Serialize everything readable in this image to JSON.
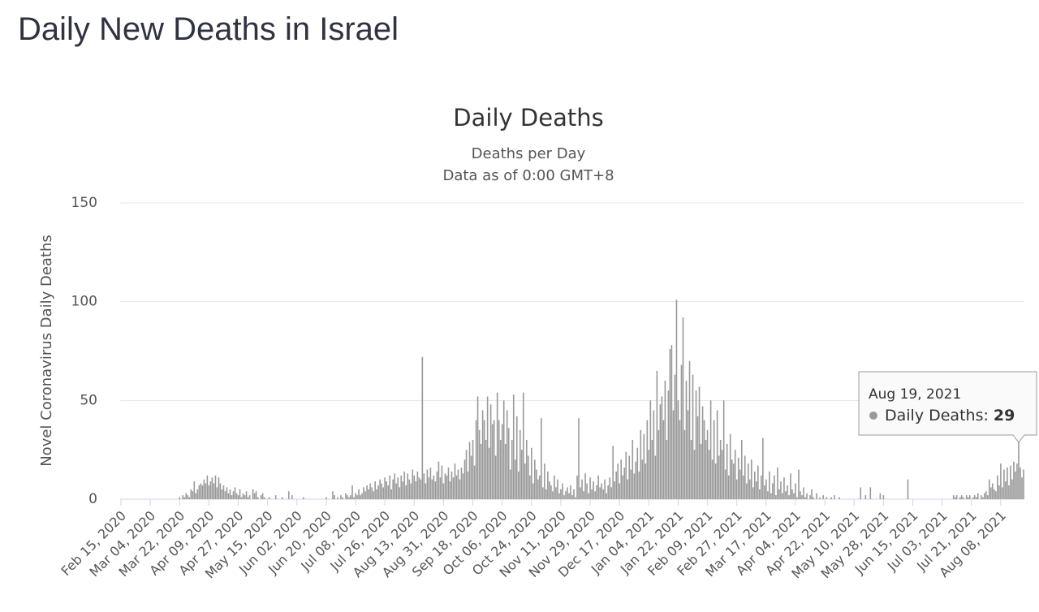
{
  "page_title": "Daily New Deaths in Israel",
  "chart_data": {
    "type": "bar",
    "title": "Daily Deaths",
    "subtitle": [
      "Deaths per Day",
      "Data as of 0:00 GMT+8"
    ],
    "y_label": "Novel Coronavirus Daily Deaths",
    "ylim": [
      0,
      150
    ],
    "yticks": [
      0,
      50,
      100,
      150
    ],
    "grid": true,
    "categories": [
      "Feb 15, 2020",
      null,
      null,
      null,
      null,
      null,
      null,
      null,
      null,
      null,
      null,
      null,
      null,
      null,
      null,
      null,
      null,
      null,
      "Mar 04, 2020",
      null,
      null,
      null,
      null,
      null,
      null,
      null,
      null,
      null,
      null,
      null,
      null,
      null,
      null,
      null,
      null,
      null,
      "Mar 22, 2020",
      null,
      null,
      null,
      null,
      null,
      null,
      null,
      null,
      null,
      null,
      null,
      null,
      null,
      null,
      null,
      null,
      null,
      "Apr 09, 2020",
      null,
      null,
      null,
      null,
      null,
      null,
      null,
      null,
      null,
      null,
      null,
      null,
      null,
      null,
      null,
      null,
      null,
      "Apr 27, 2020",
      null,
      null,
      null,
      null,
      null,
      null,
      null,
      null,
      null,
      null,
      null,
      null,
      null,
      null,
      null,
      null,
      null,
      "May 15, 2020",
      null,
      null,
      null,
      null,
      null,
      null,
      null,
      null,
      null,
      null,
      null,
      null,
      null,
      null,
      null,
      null,
      null,
      "Jun 02, 2020",
      null,
      null,
      null,
      null,
      null,
      null,
      null,
      null,
      null,
      null,
      null,
      null,
      null,
      null,
      null,
      null,
      null,
      "Jun 20, 2020",
      null,
      null,
      null,
      null,
      null,
      null,
      null,
      null,
      null,
      null,
      null,
      null,
      null,
      null,
      null,
      null,
      null,
      "Jul 08, 2020",
      null,
      null,
      null,
      null,
      null,
      null,
      null,
      null,
      null,
      null,
      null,
      null,
      null,
      null,
      null,
      null,
      null,
      "Jul 26, 2020",
      null,
      null,
      null,
      null,
      null,
      null,
      null,
      null,
      null,
      null,
      null,
      null,
      null,
      null,
      null,
      null,
      null,
      "Aug 13, 2020",
      null,
      null,
      null,
      null,
      null,
      null,
      null,
      null,
      null,
      null,
      null,
      null,
      null,
      null,
      null,
      null,
      null,
      "Aug 31, 2020",
      null,
      null,
      null,
      null,
      null,
      null,
      null,
      null,
      null,
      null,
      null,
      null,
      null,
      null,
      null,
      null,
      null,
      "Sep 18, 2020",
      null,
      null,
      null,
      null,
      null,
      null,
      null,
      null,
      null,
      null,
      null,
      null,
      null,
      null,
      null,
      null,
      null,
      "Oct 06, 2020",
      null,
      null,
      null,
      null,
      null,
      null,
      null,
      null,
      null,
      null,
      null,
      null,
      null,
      null,
      null,
      null,
      null,
      "Oct 24, 2020",
      null,
      null,
      null,
      null,
      null,
      null,
      null,
      null,
      null,
      null,
      null,
      null,
      null,
      null,
      null,
      null,
      null,
      "Nov 11, 2020",
      null,
      null,
      null,
      null,
      null,
      null,
      null,
      null,
      null,
      null,
      null,
      null,
      null,
      null,
      null,
      null,
      null,
      "Nov 29, 2020",
      null,
      null,
      null,
      null,
      null,
      null,
      null,
      null,
      null,
      null,
      null,
      null,
      null,
      null,
      null,
      null,
      null,
      "Dec 17, 2020",
      null,
      null,
      null,
      null,
      null,
      null,
      null,
      null,
      null,
      null,
      null,
      null,
      null,
      null,
      null,
      null,
      null,
      "Jan 04, 2021",
      null,
      null,
      null,
      null,
      null,
      null,
      null,
      null,
      null,
      null,
      null,
      null,
      null,
      null,
      null,
      null,
      null,
      "Jan 22, 2021",
      null,
      null,
      null,
      null,
      null,
      null,
      null,
      null,
      null,
      null,
      null,
      null,
      null,
      null,
      null,
      null,
      null,
      "Feb 09, 2021",
      null,
      null,
      null,
      null,
      null,
      null,
      null,
      null,
      null,
      null,
      null,
      null,
      null,
      null,
      null,
      null,
      null,
      "Feb 27, 2021",
      null,
      null,
      null,
      null,
      null,
      null,
      null,
      null,
      null,
      null,
      null,
      null,
      null,
      null,
      null,
      null,
      null,
      "Mar 17, 2021",
      null,
      null,
      null,
      null,
      null,
      null,
      null,
      null,
      null,
      null,
      null,
      null,
      null,
      null,
      null,
      null,
      null,
      "Apr 04, 2021",
      null,
      null,
      null,
      null,
      null,
      null,
      null,
      null,
      null,
      null,
      null,
      null,
      null,
      null,
      null,
      null,
      null,
      "Apr 22, 2021",
      null,
      null,
      null,
      null,
      null,
      null,
      null,
      null,
      null,
      null,
      null,
      null,
      null,
      null,
      null,
      null,
      null,
      "May 10, 2021",
      null,
      null,
      null,
      null,
      null,
      null,
      null,
      null,
      null,
      null,
      null,
      null,
      null,
      null,
      null,
      null,
      null,
      "May 28, 2021",
      null,
      null,
      null,
      null,
      null,
      null,
      null,
      null,
      null,
      null,
      null,
      null,
      null,
      null,
      null,
      null,
      null,
      "Jun 15, 2021",
      null,
      null,
      null,
      null,
      null,
      null,
      null,
      null,
      null,
      null,
      null,
      null,
      null,
      null,
      null,
      null,
      null,
      "Jul 03, 2021",
      null,
      null,
      null,
      null,
      null,
      null,
      null,
      null,
      null,
      null,
      null,
      null,
      null,
      null,
      null,
      null,
      null,
      "Jul 21, 2021",
      null,
      null,
      null,
      null,
      null,
      null,
      null,
      null,
      null,
      null,
      null,
      null,
      null,
      null,
      null,
      null,
      null,
      "Aug 08, 2021",
      null,
      null,
      null,
      null,
      null,
      null,
      null,
      null,
      null,
      null,
      null,
      null,
      null,
      null
    ],
    "series": [
      {
        "name": "Daily Deaths",
        "color": "#999999",
        "values": [
          0,
          0,
          0,
          0,
          0,
          0,
          0,
          0,
          0,
          0,
          0,
          0,
          0,
          0,
          0,
          0,
          0,
          0,
          0,
          0,
          0,
          0,
          0,
          0,
          0,
          0,
          0,
          0,
          0,
          0,
          0,
          0,
          0,
          0,
          0,
          0,
          1,
          0,
          2,
          1,
          3,
          2,
          1,
          5,
          4,
          9,
          3,
          5,
          7,
          8,
          7,
          10,
          8,
          12,
          7,
          9,
          11,
          8,
          12,
          6,
          11,
          8,
          5,
          7,
          4,
          6,
          3,
          5,
          2,
          4,
          6,
          3,
          2,
          5,
          1,
          3,
          2,
          4,
          1,
          2,
          0,
          5,
          3,
          4,
          1,
          0,
          2,
          3,
          1,
          0,
          0,
          1,
          0,
          0,
          0,
          2,
          0,
          0,
          0,
          1,
          0,
          0,
          0,
          4,
          0,
          2,
          0,
          0,
          0,
          0,
          0,
          0,
          1,
          0,
          0,
          0,
          0,
          0,
          0,
          0,
          0,
          0,
          0,
          0,
          0,
          0,
          1,
          0,
          0,
          0,
          4,
          2,
          0,
          1,
          0,
          2,
          1,
          0,
          3,
          2,
          1,
          2,
          7,
          1,
          3,
          2,
          5,
          2,
          3,
          6,
          4,
          7,
          5,
          8,
          6,
          4,
          9,
          5,
          7,
          10,
          8,
          6,
          11,
          9,
          7,
          12,
          5,
          10,
          13,
          8,
          11,
          6,
          12,
          9,
          14,
          7,
          13,
          10,
          8,
          15,
          12,
          9,
          14,
          11,
          10,
          72,
          13,
          8,
          15,
          11,
          16,
          10,
          12,
          9,
          14,
          19,
          11,
          17,
          8,
          13,
          12,
          16,
          9,
          14,
          11,
          18,
          12,
          15,
          10,
          16,
          13,
          20,
          25,
          14,
          29,
          22,
          30,
          17,
          40,
          52,
          35,
          28,
          45,
          40,
          30,
          52,
          26,
          48,
          38,
          40,
          22,
          54,
          40,
          30,
          38,
          50,
          28,
          45,
          36,
          15,
          30,
          53,
          20,
          42,
          14,
          35,
          25,
          54,
          18,
          30,
          22,
          12,
          26,
          8,
          20,
          15,
          10,
          12,
          41,
          6,
          18,
          5,
          14,
          9,
          7,
          4,
          12,
          6,
          10,
          3,
          5,
          8,
          2,
          4,
          6,
          3,
          7,
          2,
          5,
          1,
          12,
          41,
          6,
          10,
          4,
          13,
          8,
          3,
          11,
          5,
          9,
          4,
          7,
          12,
          6,
          8,
          5,
          10,
          3,
          7,
          11,
          6,
          27,
          9,
          14,
          18,
          8,
          20,
          12,
          16,
          24,
          10,
          22,
          15,
          30,
          13,
          19,
          26,
          14,
          35,
          20,
          33,
          18,
          40,
          25,
          50,
          30,
          45,
          22,
          65,
          35,
          48,
          52,
          40,
          60,
          30,
          55,
          76,
          78,
          45,
          63,
          101,
          50,
          40,
          68,
          92,
          35,
          60,
          45,
          70,
          30,
          63,
          25,
          55,
          42,
          57,
          28,
          47,
          40,
          30,
          35,
          25,
          50,
          20,
          40,
          18,
          45,
          22,
          30,
          25,
          50,
          15,
          28,
          12,
          33,
          20,
          18,
          25,
          10,
          21,
          15,
          30,
          12,
          22,
          8,
          18,
          10,
          20,
          6,
          14,
          9,
          17,
          5,
          12,
          31,
          7,
          10,
          4,
          14,
          3,
          8,
          12,
          2,
          16,
          5,
          9,
          3,
          11,
          4,
          7,
          2,
          13,
          5,
          3,
          8,
          1,
          15,
          4,
          2,
          6,
          1,
          3,
          0,
          2,
          5,
          1,
          0,
          3,
          0,
          1,
          0,
          2,
          0,
          1,
          0,
          0,
          1,
          0,
          2,
          0,
          0,
          1,
          0,
          0,
          0,
          0,
          0,
          0,
          0,
          0,
          0,
          0,
          0,
          0,
          6,
          0,
          0,
          2,
          0,
          0,
          6,
          0,
          0,
          0,
          0,
          0,
          3,
          0,
          2,
          0,
          0,
          0,
          0,
          0,
          0,
          0,
          0,
          0,
          0,
          0,
          0,
          0,
          0,
          10,
          0,
          0,
          0,
          0,
          0,
          0,
          0,
          0,
          0,
          0,
          0,
          0,
          0,
          0,
          0,
          0,
          0,
          0,
          0,
          0,
          0,
          0,
          0,
          0,
          0,
          0,
          0,
          2,
          1,
          2,
          0,
          1,
          2,
          1,
          0,
          2,
          1,
          2,
          0,
          1,
          2,
          1,
          3,
          0,
          2,
          1,
          3,
          4,
          2,
          10,
          6,
          8,
          5,
          4,
          12,
          7,
          18,
          6,
          15,
          9,
          16,
          7,
          17,
          10,
          19,
          14,
          18,
          29,
          16,
          11,
          15
        ]
      }
    ],
    "tooltip": {
      "date": "Aug 19, 2021",
      "label": "Daily Deaths:",
      "value": 29
    }
  }
}
